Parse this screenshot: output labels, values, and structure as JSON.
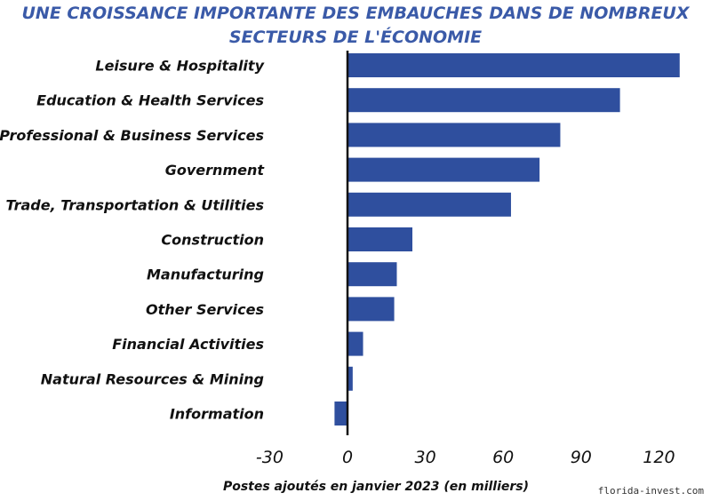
{
  "chart_data": {
    "type": "bar",
    "orientation": "horizontal",
    "title": [
      "UNE CROISSANCE IMPORTANTE DES EMBAUCHES DANS DE NOMBREUX",
      "SECTEURS DE L'ÉCONOMIE"
    ],
    "categories": [
      "Leisure & Hospitality",
      "Education & Health Services",
      "Professional & Business Services",
      "Government",
      "Trade, Transportation & Utilities",
      "Construction",
      "Manufacturing",
      "Other Services",
      "Financial Activities",
      "Natural Resources & Mining",
      "Information"
    ],
    "values": [
      128,
      105,
      82,
      74,
      63,
      25,
      19,
      18,
      6,
      2,
      -5
    ],
    "xlabel": "Postes ajoutés en janvier 2023 (en milliers)",
    "ylabel": "",
    "xticks": [
      -30,
      0,
      30,
      60,
      90,
      120
    ],
    "xtick_labels": [
      "-30",
      "0",
      "30",
      "60",
      "90",
      "120"
    ],
    "xlim": [
      -30,
      130
    ],
    "grid": false,
    "colors": {
      "bar": "#2f4f9e",
      "title": "#3a5aa8",
      "axis": "#111111",
      "text": "#111111"
    }
  },
  "footer": {
    "watermark": "florida-invest.com"
  }
}
